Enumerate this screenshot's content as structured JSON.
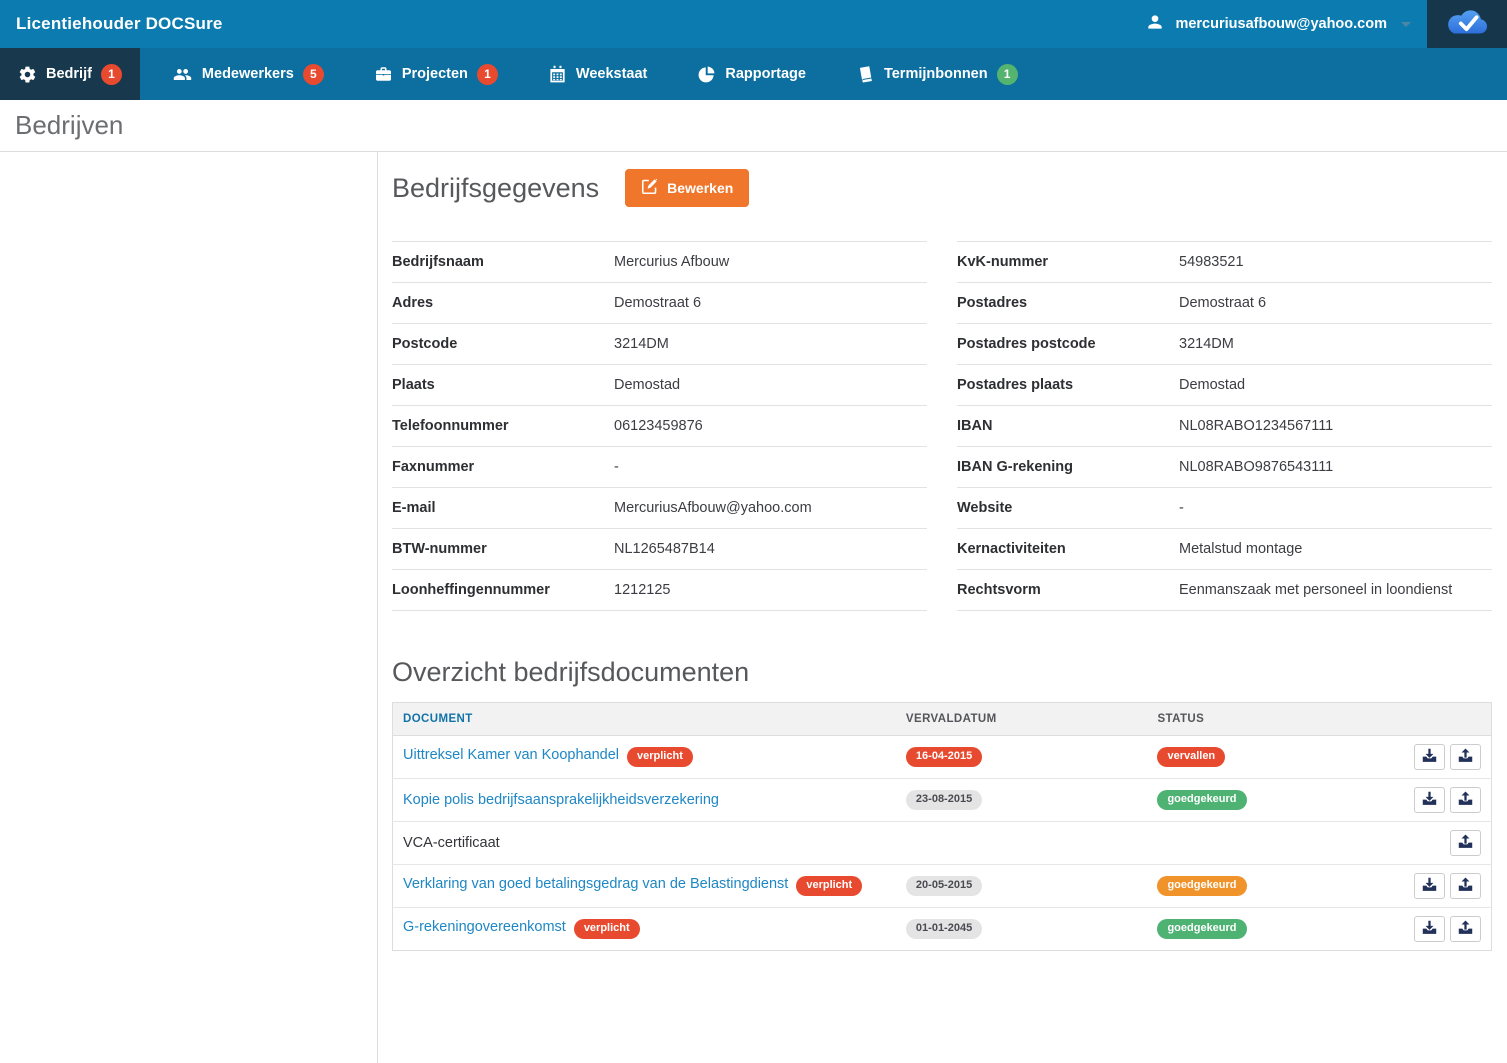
{
  "topbar": {
    "title": "Licentiehouder DOCSure",
    "user_email": "mercuriusafbouw@yahoo.com"
  },
  "nav": {
    "items": [
      {
        "id": "bedrijf",
        "label": "Bedrijf",
        "icon": "gear-icon",
        "badge": "1",
        "badge_color": "red",
        "active": true
      },
      {
        "id": "medewerkers",
        "label": "Medewerkers",
        "icon": "users-icon",
        "badge": "5",
        "badge_color": "red",
        "active": false
      },
      {
        "id": "projecten",
        "label": "Projecten",
        "icon": "briefcase-icon",
        "badge": "1",
        "badge_color": "red",
        "active": false
      },
      {
        "id": "weekstaat",
        "label": "Weekstaat",
        "icon": "calendar-icon",
        "badge": null,
        "active": false
      },
      {
        "id": "rapportage",
        "label": "Rapportage",
        "icon": "pie-chart-icon",
        "badge": null,
        "active": false
      },
      {
        "id": "termijnbonnen",
        "label": "Termijnbonnen",
        "icon": "book-icon",
        "badge": "1",
        "badge_color": "green",
        "active": false
      }
    ]
  },
  "page": {
    "title": "Bedrijven"
  },
  "company": {
    "section_title": "Bedrijfsgegevens",
    "edit_button_label": "Bewerken",
    "fields_left": [
      {
        "label": "Bedrijfsnaam",
        "value": "Mercurius Afbouw"
      },
      {
        "label": "Adres",
        "value": "Demostraat 6"
      },
      {
        "label": "Postcode",
        "value": "3214DM"
      },
      {
        "label": "Plaats",
        "value": "Demostad"
      },
      {
        "label": "Telefoonnummer",
        "value": "06123459876"
      },
      {
        "label": "Faxnummer",
        "value": "-"
      },
      {
        "label": "E-mail",
        "value": "MercuriusAfbouw@yahoo.com"
      },
      {
        "label": "BTW-nummer",
        "value": "NL1265487B14"
      },
      {
        "label": "Loonheffingennummer",
        "value": "1212125"
      }
    ],
    "fields_right": [
      {
        "label": "KvK-nummer",
        "value": "54983521"
      },
      {
        "label": "Postadres",
        "value": "Demostraat 6"
      },
      {
        "label": "Postadres postcode",
        "value": "3214DM"
      },
      {
        "label": "Postadres plaats",
        "value": "Demostad"
      },
      {
        "label": "IBAN",
        "value": "NL08RABO1234567111"
      },
      {
        "label": "IBAN G-rekening",
        "value": "NL08RABO9876543111"
      },
      {
        "label": "Website",
        "value": "-"
      },
      {
        "label": "Kernactiviteiten",
        "value": "Metalstud montage"
      },
      {
        "label": "Rechtsvorm",
        "value": "Eenmanszaak met personeel in loondienst"
      }
    ]
  },
  "documents": {
    "section_title": "Overzicht bedrijfsdocumenten",
    "columns": [
      "DOCUMENT",
      "VERVALDATUM",
      "STATUS"
    ],
    "required_badge_label": "verplicht",
    "rows": [
      {
        "name": "Uittreksel Kamer van Koophandel",
        "link": true,
        "required": true,
        "due_date": "16-04-2015",
        "due_badge": "red",
        "status": "vervallen",
        "status_badge": "red",
        "can_download": true,
        "can_upload": true
      },
      {
        "name": "Kopie polis bedrijfsaansprakelijkheidsverzekering",
        "link": true,
        "required": false,
        "due_date": "23-08-2015",
        "due_badge": "gray",
        "status": "goedgekeurd",
        "status_badge": "green",
        "can_download": true,
        "can_upload": true
      },
      {
        "name": "VCA-certificaat",
        "link": false,
        "required": false,
        "due_date": null,
        "due_badge": null,
        "status": null,
        "status_badge": null,
        "can_download": false,
        "can_upload": true
      },
      {
        "name": "Verklaring van goed betalingsgedrag van de Belastingdienst",
        "link": true,
        "required": true,
        "due_date": "20-05-2015",
        "due_badge": "gray",
        "status": "goedgekeurd",
        "status_badge": "orange",
        "can_download": true,
        "can_upload": true
      },
      {
        "name": "G-rekeningovereenkomst",
        "link": true,
        "required": true,
        "due_date": "01-01-2045",
        "due_badge": "gray",
        "status": "goedgekeurd",
        "status_badge": "green",
        "can_download": true,
        "can_upload": true
      }
    ]
  },
  "colors": {
    "topbar_blue": "#0C7CB0",
    "navbar_blue": "#0C6F9F",
    "active_tab_navy": "#17384D",
    "accent_orange": "#F0762B",
    "badge_red": "#E84A2F",
    "badge_green": "#4EB273",
    "badge_orange": "#F0932B",
    "link_blue": "#1E87C4",
    "table_header_blue": "#1273A8"
  }
}
